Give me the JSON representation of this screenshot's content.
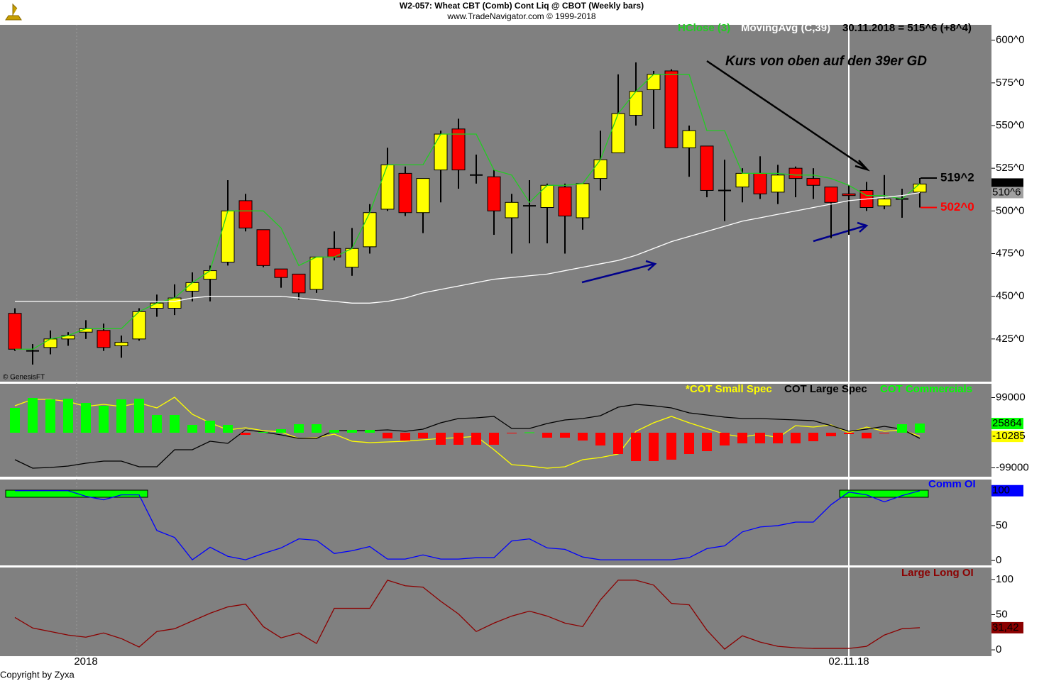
{
  "header": {
    "title": "W2-057:  Wheat CBT (Comb) Cont Liq @ CBOT  (Weekly bars)",
    "subtitle": "www.TradeNavigator.com © 1999-2018"
  },
  "footer": "Copyright by Zyxa",
  "source_note": "© GenesisFT",
  "chart_data": [
    {
      "type": "candlestick",
      "status": "30.11.2018 = 515^6 (+8^4)",
      "annotation": "Kurs von oben auf den 39er GD",
      "categories": [
        null,
        null,
        null,
        null,
        "2018",
        null,
        null,
        null,
        null,
        null,
        null,
        null,
        null,
        null,
        null,
        null,
        null,
        null,
        null,
        null,
        null,
        null,
        null,
        null,
        null,
        null,
        null,
        null,
        null,
        null,
        null,
        null,
        null,
        null,
        null,
        null,
        null,
        null,
        null,
        null,
        null,
        null,
        null,
        null,
        null,
        null,
        null,
        "02.11.18",
        null,
        null,
        null,
        null
      ],
      "open": [
        440,
        418,
        420,
        425,
        429,
        430,
        421,
        425,
        443,
        443,
        453,
        460,
        470,
        506,
        489,
        466,
        463,
        454,
        478,
        467,
        479,
        501,
        522,
        499,
        524,
        548,
        521,
        520,
        496,
        503,
        502,
        514,
        496,
        519,
        534,
        556,
        571,
        582,
        537,
        538,
        512,
        514,
        522,
        511,
        525,
        519,
        514,
        510,
        512,
        503,
        507,
        511
      ],
      "high": [
        443,
        422,
        430,
        429,
        436,
        434,
        427,
        443,
        451,
        457,
        464,
        468,
        518,
        510,
        489,
        466,
        463,
        473,
        488,
        490,
        504,
        537,
        526,
        519,
        547,
        554,
        533,
        524,
        510,
        518,
        516,
        516,
        516,
        547,
        580,
        587,
        582,
        583,
        550,
        538,
        530,
        525,
        532,
        527,
        526,
        525,
        514,
        515,
        517,
        521,
        513,
        519.25
      ],
      "low": [
        418,
        410,
        416,
        421,
        425,
        418,
        414,
        424,
        438,
        439,
        447,
        447,
        468,
        488,
        467,
        455,
        448,
        452,
        471,
        462,
        475,
        500,
        497,
        487,
        505,
        513,
        516,
        486,
        475,
        481,
        481,
        475,
        489,
        512,
        534,
        550,
        548,
        537,
        520,
        508,
        494,
        505,
        507,
        504,
        508,
        507,
        484,
        486,
        500,
        501,
        496,
        502
      ],
      "close": [
        419,
        418,
        425,
        427,
        431,
        420,
        423,
        441,
        446,
        449,
        458,
        465,
        500,
        490,
        468,
        461,
        452,
        473,
        473,
        478,
        499,
        527,
        499,
        519,
        545,
        524,
        521,
        500,
        505,
        503,
        515,
        497,
        516,
        530,
        557,
        570,
        580,
        537,
        547,
        512,
        512,
        522,
        510,
        521,
        519,
        515,
        505,
        509,
        502,
        507,
        507,
        515.75
      ],
      "up_color": "#ffff00",
      "down_color": "#ff0000",
      "series": [
        {
          "name": "HClose (3)",
          "color": "#22cc22",
          "values": [
            419,
            419,
            425,
            427,
            431,
            431,
            431,
            441,
            446,
            449,
            458,
            465,
            500,
            500,
            500,
            490,
            468,
            473,
            473,
            478,
            499,
            527,
            527,
            527,
            545,
            545,
            545,
            524,
            521,
            505,
            515,
            515,
            516,
            530,
            557,
            570,
            580,
            580,
            580,
            547,
            547,
            522,
            522,
            522,
            521,
            521,
            519,
            515,
            509,
            509,
            507,
            516
          ]
        },
        {
          "name": "MovingAvg (C,39)",
          "color": "#ffffff",
          "values": [
            447,
            447,
            447,
            447,
            447,
            447,
            447,
            447,
            447,
            447,
            449,
            450,
            450,
            450,
            450,
            450,
            449,
            448,
            447,
            446,
            446,
            447,
            449,
            452,
            454,
            456,
            458,
            460,
            461,
            462,
            463,
            465,
            467,
            469,
            471,
            474,
            478,
            482,
            485,
            488,
            491,
            494,
            496,
            498,
            500,
            502,
            504,
            506,
            507,
            508,
            509,
            510.75
          ]
        }
      ],
      "markers": [
        {
          "value": 519.25,
          "label": "519^2",
          "color": "#000000"
        },
        {
          "value": 502,
          "label": "502^0",
          "color": "#ff0000"
        }
      ],
      "axis_boxes": [
        {
          "value": 515.75,
          "label": "515^6",
          "color": "#000000",
          "text_color": "#ffffff"
        },
        {
          "value": 510.75,
          "label": "510^6",
          "color": "#a0a0a0",
          "text_color": "#e0e0e0"
        }
      ],
      "ylim": [
        400,
        609
      ],
      "yticks": [
        {
          "value": 425,
          "label": "425^0"
        },
        {
          "value": 450,
          "label": "450^0"
        },
        {
          "value": 475,
          "label": "475^0"
        },
        {
          "value": 500,
          "label": "500^0"
        },
        {
          "value": 525,
          "label": "525^0"
        },
        {
          "value": 550,
          "label": "550^0"
        },
        {
          "value": 575,
          "label": "575^0"
        },
        {
          "value": 600,
          "label": "600^0"
        }
      ]
    },
    {
      "type": "combo",
      "series": [
        {
          "name": "*COT Small Spec",
          "style": "line",
          "color": "#ffff00",
          "values": [
            76000,
            94000,
            94000,
            88000,
            74000,
            80000,
            74000,
            84000,
            70000,
            100000,
            52000,
            28000,
            8000,
            14000,
            6000,
            2000,
            -16000,
            -14000,
            -4000,
            -24000,
            -28000,
            -26000,
            -24000,
            -20000,
            -16000,
            -14000,
            -10000,
            -48000,
            -90000,
            -94000,
            -100000,
            -96000,
            -76000,
            -70000,
            -60000,
            4000,
            28000,
            46000,
            28000,
            12000,
            -4000,
            -12000,
            -4000,
            -14000,
            20000,
            16000,
            22000,
            0,
            16000,
            4000,
            8000,
            -10285
          ]
        },
        {
          "name": "COT Large Spec",
          "style": "line",
          "color": "#000000",
          "values": [
            -76000,
            -100000,
            -98000,
            -94000,
            -86000,
            -80000,
            -80000,
            -96000,
            -96000,
            -48000,
            -48000,
            -24000,
            -30000,
            8000,
            2000,
            -6000,
            -16000,
            -16000,
            6000,
            6000,
            6000,
            8000,
            4000,
            10000,
            28000,
            40000,
            42000,
            46000,
            12000,
            12000,
            26000,
            36000,
            40000,
            48000,
            72000,
            80000,
            76000,
            70000,
            56000,
            50000,
            44000,
            40000,
            40000,
            38000,
            36000,
            34000,
            20000,
            4000,
            10000,
            18000,
            10000,
            -16000
          ]
        },
        {
          "name": "COT Commercials",
          "style": "bar",
          "color": "#00ff00",
          "negative_color": "#ff0000",
          "values": [
            70000,
            98000,
            94000,
            96000,
            84000,
            76000,
            94000,
            96000,
            50000,
            50000,
            22000,
            34000,
            22000,
            -6000,
            2000,
            10000,
            24000,
            24000,
            8000,
            8000,
            8000,
            -16000,
            -22000,
            -16000,
            -34000,
            -34000,
            -34000,
            -34000,
            -2000,
            1000,
            -14000,
            -14000,
            -22000,
            -36000,
            -60000,
            -80000,
            -80000,
            -76000,
            -60000,
            -52000,
            -36000,
            -30000,
            -30000,
            -30000,
            -30000,
            -24000,
            -10000,
            -4000,
            -16000,
            -2000,
            24000,
            25864
          ]
        }
      ],
      "axis_boxes": [
        {
          "value": 25864,
          "label": "25864",
          "color": "#00ff00",
          "text_color": "#808080"
        },
        {
          "value": -10285,
          "label": "-10285",
          "color": "#ffff00",
          "text_color": "#000000"
        }
      ],
      "ylim": [
        -124000,
        138000
      ],
      "yticks": [
        -99000,
        99000
      ]
    },
    {
      "type": "line",
      "series": [
        {
          "name": "Comm OI",
          "color": "#0000ff",
          "values": [
            100,
            100,
            100,
            100,
            92,
            87,
            94,
            94,
            43,
            33,
            1,
            19,
            6,
            1,
            10,
            18,
            31,
            29,
            10,
            14,
            20,
            2,
            2,
            8,
            2,
            2,
            4,
            4,
            28,
            31,
            18,
            16,
            5,
            1,
            1,
            1,
            1,
            1,
            4,
            17,
            21,
            41,
            48,
            50,
            55,
            55,
            80,
            98,
            94,
            84,
            93,
            100
          ]
        }
      ],
      "axis_boxes": [
        {
          "value": 100,
          "label": "100",
          "color": "#0000ff",
          "text_color": "#000000"
        }
      ],
      "ylim": [
        -7,
        116
      ],
      "yticks": [
        0,
        50,
        100
      ]
    },
    {
      "type": "line",
      "series": [
        {
          "name": "Large Long OI",
          "color": "#8b0000",
          "values": [
            46,
            31,
            26,
            21,
            18,
            24,
            16,
            4,
            26,
            30,
            41,
            52,
            61,
            65,
            33,
            17,
            24,
            9,
            59,
            59,
            59,
            99,
            91,
            89,
            69,
            51,
            26,
            38,
            48,
            55,
            48,
            38,
            33,
            71,
            99,
            99,
            92,
            66,
            64,
            28,
            1,
            20,
            11,
            5,
            3,
            2,
            2,
            2,
            5,
            21,
            30,
            31.42
          ]
        }
      ],
      "axis_boxes": [
        {
          "value": 31.42,
          "label": "31,42",
          "color": "#8b0000",
          "text_color": "#ffffff"
        }
      ],
      "ylim": [
        -9,
        117
      ],
      "yticks": [
        0,
        50,
        100
      ]
    }
  ]
}
